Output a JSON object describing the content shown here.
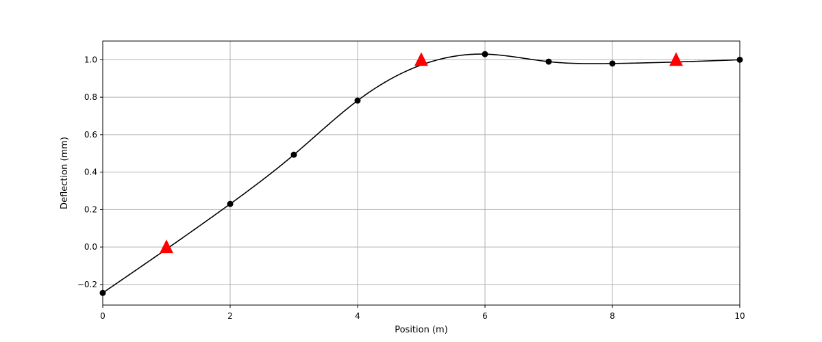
{
  "chart_data": {
    "type": "line",
    "xlabel": "Position (m)",
    "ylabel": "Deflection (mm)",
    "xlim": [
      0,
      10
    ],
    "ylim": [
      -0.31,
      1.1
    ],
    "grid": true,
    "x_ticks": [
      0,
      2,
      4,
      6,
      8,
      10
    ],
    "x_tick_labels": [
      "0",
      "2",
      "4",
      "6",
      "8",
      "10"
    ],
    "y_ticks": [
      -0.2,
      0.0,
      0.2,
      0.4,
      0.6,
      0.8,
      1.0
    ],
    "y_tick_labels": [
      "−0.2",
      "0.0",
      "0.2",
      "0.4",
      "0.6",
      "0.8",
      "1.0"
    ],
    "series": [
      {
        "kind": "smooth-curve-with-markers",
        "color": "#000000",
        "marker": "circle",
        "x": [
          0,
          2,
          3,
          4,
          6,
          7,
          8,
          10
        ],
        "y": [
          -0.245,
          0.23,
          0.493,
          0.782,
          1.03,
          0.99,
          0.98,
          1.0
        ]
      },
      {
        "kind": "markers",
        "color": "#ff0000",
        "marker": "triangle",
        "x": [
          1,
          5,
          9
        ],
        "y": [
          0.0,
          1.0,
          1.0
        ]
      }
    ]
  }
}
